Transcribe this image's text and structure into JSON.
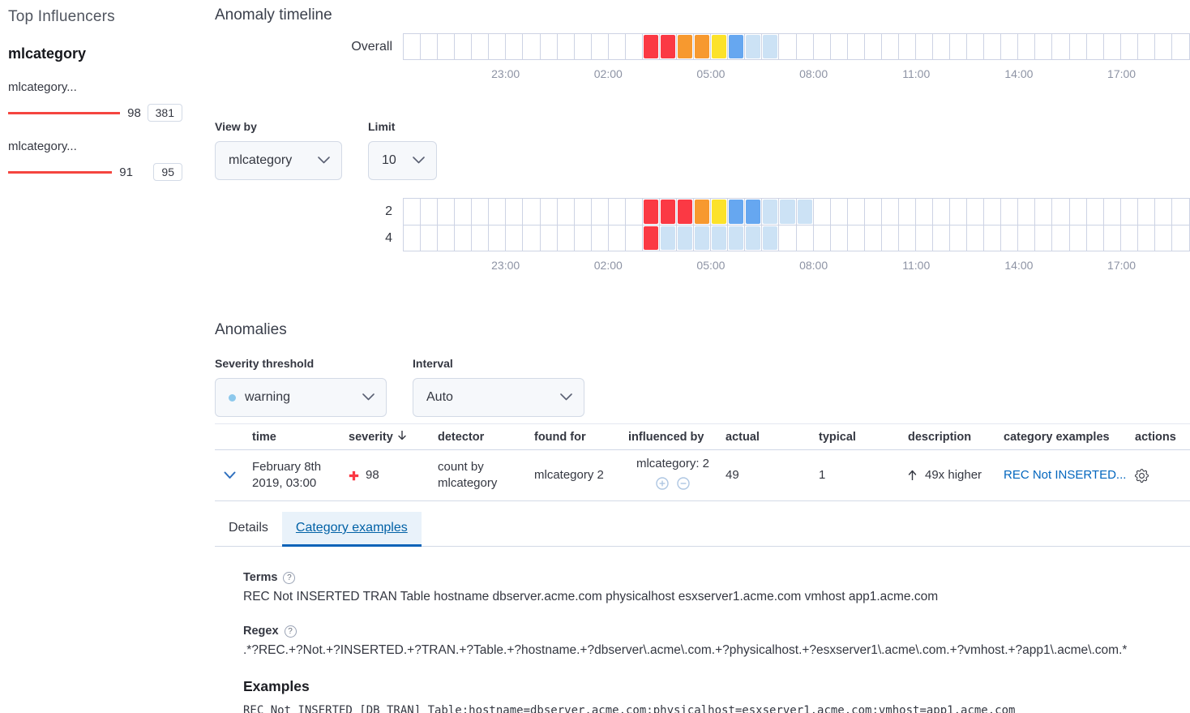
{
  "colors": {
    "critical": "#FB3944",
    "major": "#F7992F",
    "minor": "#FCE22A",
    "warning": "#66A7F0",
    "low": "#CCE2F5",
    "influencer_bar": "#F5453F",
    "link": "#0266BE",
    "severity_dot": "#8CC8EC"
  },
  "sidebar": {
    "title": "Top Influencers",
    "field_title": "mlcategory",
    "influencers": [
      {
        "label": "mlcategory...",
        "score": 98,
        "badge": "381"
      },
      {
        "label": "mlcategory...",
        "score": 91,
        "badge": "95"
      }
    ]
  },
  "timeline": {
    "title": "Anomaly timeline",
    "overall_label": "Overall",
    "cell_count": 46,
    "axis_ticks": [
      {
        "label": "23:00",
        "cell": 6
      },
      {
        "label": "02:00",
        "cell": 12
      },
      {
        "label": "05:00",
        "cell": 18
      },
      {
        "label": "08:00",
        "cell": 24
      },
      {
        "label": "11:00",
        "cell": 30
      },
      {
        "label": "14:00",
        "cell": 36
      },
      {
        "label": "17:00",
        "cell": 42
      }
    ],
    "overall_cells": {
      "14": "critical",
      "15": "critical",
      "16": "major",
      "17": "major",
      "18": "minor",
      "19": "warning",
      "20": "low",
      "21": "low"
    },
    "view_by": {
      "label": "View by",
      "value": "mlcategory"
    },
    "limit": {
      "label": "Limit",
      "value": "10"
    },
    "lanes": [
      {
        "label": "2",
        "cells": {
          "14": "critical",
          "15": "critical",
          "16": "critical",
          "17": "major",
          "18": "minor",
          "19": "warning",
          "20": "warning",
          "21": "low",
          "22": "low",
          "23": "low"
        }
      },
      {
        "label": "4",
        "cells": {
          "14": "critical",
          "15": "low",
          "16": "low",
          "17": "low",
          "18": "low",
          "19": "low",
          "20": "low",
          "21": "low"
        }
      }
    ]
  },
  "anomalies": {
    "title": "Anomalies",
    "severity_threshold": {
      "label": "Severity threshold",
      "value": "warning"
    },
    "interval": {
      "label": "Interval",
      "value": "Auto"
    },
    "table": {
      "columns": [
        "time",
        "severity",
        "detector",
        "found for",
        "influenced by",
        "actual",
        "typical",
        "description",
        "category examples",
        "actions"
      ],
      "sorted_column": "severity",
      "row": {
        "time": "February 8th 2019, 03:00",
        "severity": "98",
        "detector": "count by mlcategory",
        "found_for": "mlcategory 2",
        "influenced_by": "mlcategory: 2",
        "actual": "49",
        "typical": "1",
        "description": "49x higher",
        "category_examples": "REC Not INSERTED..."
      }
    },
    "tabs": [
      {
        "label": "Details",
        "active": false
      },
      {
        "label": "Category examples",
        "active": true
      }
    ],
    "details": {
      "terms_label": "Terms",
      "terms": "REC Not INSERTED TRAN Table hostname dbserver.acme.com physicalhost esxserver1.acme.com vmhost app1.acme.com",
      "regex_label": "Regex",
      "regex": ".*?REC.+?Not.+?INSERTED.+?TRAN.+?Table.+?hostname.+?dbserver\\.acme\\.com.+?physicalhost.+?esxserver1\\.acme\\.com.+?vmhost.+?app1\\.acme\\.com.*",
      "examples_label": "Examples",
      "example": "REC Not INSERTED [DB TRAN] Table;hostname=dbserver.acme.com;physicalhost=esxserver1.acme.com;vmhost=app1.acme.com"
    }
  }
}
